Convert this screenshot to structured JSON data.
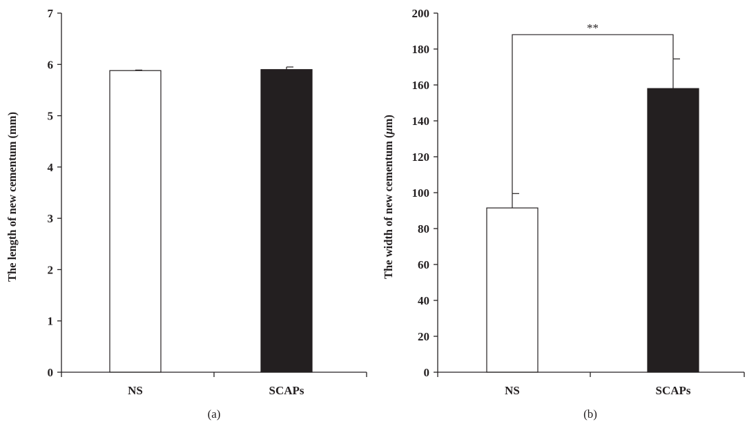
{
  "colors": {
    "axis": "#231f20",
    "ns_fill": "#ffffff",
    "scaps_fill": "#231f20"
  },
  "chart_data": [
    {
      "type": "bar",
      "panel_label": "(a)",
      "categories": [
        "NS",
        "SCAPs"
      ],
      "series": [
        {
          "values": [
            5.88,
            5.9
          ],
          "errors": [
            0.01,
            0.05
          ],
          "colors": [
            "#ffffff",
            "#231f20"
          ]
        }
      ],
      "ylabel": "The length of new cementum (mm)",
      "ylim": [
        0,
        7
      ],
      "yticks": [
        "0",
        "1",
        "2",
        "3",
        "4",
        "5",
        "6",
        "7"
      ],
      "grid": false
    },
    {
      "type": "bar",
      "panel_label": "(b)",
      "categories": [
        "NS",
        "SCAPs"
      ],
      "series": [
        {
          "values": [
            91.5,
            158
          ],
          "errors": [
            8,
            16.5
          ],
          "colors": [
            "#ffffff",
            "#231f20"
          ]
        }
      ],
      "ylabel": "The width of new cementum (μm)",
      "ylabel_prefix": "The width of new cementum (",
      "ylabel_unit": "μ",
      "ylabel_suffix": "m)",
      "ylim": [
        0,
        200
      ],
      "yticks": [
        "0",
        "20",
        "40",
        "60",
        "80",
        "100",
        "120",
        "140",
        "160",
        "180",
        "200"
      ],
      "grid": false,
      "annotation": {
        "text": "**",
        "between": [
          "NS",
          "SCAPs"
        ]
      }
    }
  ]
}
